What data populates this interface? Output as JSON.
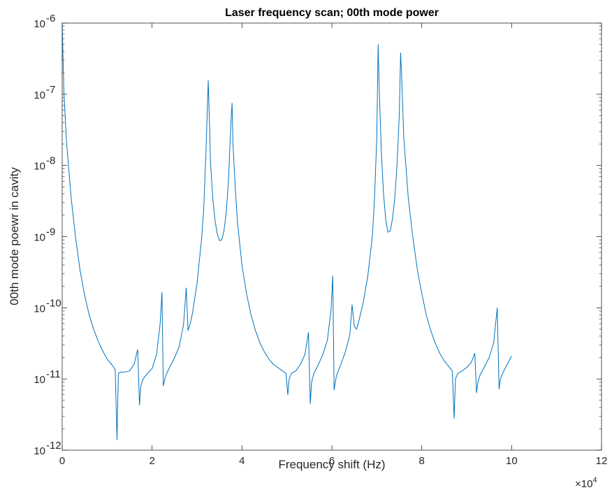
{
  "chart_data": {
    "type": "line",
    "title": "Laser frequency scan; 00th mode power",
    "xlabel": "Frequency shift (Hz)",
    "ylabel": "00th mode poewr in cavity",
    "x_exponent_label": "×10",
    "x_exponent": "4",
    "x_scale_factor": 10000,
    "xlim": [
      0,
      120000
    ],
    "ylim": [
      1e-12,
      1e-06
    ],
    "yscale": "log",
    "grid": false,
    "x_ticks": [
      0,
      20000,
      40000,
      60000,
      80000,
      100000,
      120000
    ],
    "x_tick_labels": [
      "0",
      "2",
      "4",
      "6",
      "8",
      "10",
      "12"
    ],
    "y_ticks": [
      1e-12,
      1e-11,
      1e-10,
      1e-09,
      1e-08,
      1e-07,
      1e-06
    ],
    "y_tick_labels": [
      {
        "base": "10",
        "exp": "-12"
      },
      {
        "base": "10",
        "exp": "-11"
      },
      {
        "base": "10",
        "exp": "-10"
      },
      {
        "base": "10",
        "exp": "-9"
      },
      {
        "base": "10",
        "exp": "-8"
      },
      {
        "base": "10",
        "exp": "-7"
      },
      {
        "base": "10",
        "exp": "-6"
      }
    ],
    "series": [
      {
        "color": "#0072bd",
        "x": [
          0,
          200,
          400,
          1000,
          2000,
          3000,
          4000,
          5000,
          6000,
          7000,
          8000,
          9000,
          10000,
          11000,
          11800,
          12200,
          12500,
          13000,
          14000,
          15000,
          16000,
          16800,
          17200,
          17500,
          18000,
          19000,
          20000,
          21000,
          21800,
          22200,
          22500,
          23000,
          24000,
          25000,
          26000,
          27000,
          27600,
          28000,
          28500,
          29000,
          30000,
          31000,
          31500,
          32000,
          32500,
          32800,
          33000,
          33500,
          34000,
          34500,
          35000,
          35500,
          36000,
          36500,
          37000,
          37500,
          37800,
          38000,
          38500,
          39000,
          40000,
          41000,
          42000,
          43000,
          44000,
          45000,
          46000,
          47000,
          48000,
          49000,
          49800,
          50200,
          50500,
          51000,
          52000,
          53000,
          54000,
          54800,
          55200,
          55500,
          56000,
          57000,
          58000,
          59000,
          59800,
          60200,
          60500,
          61000,
          62000,
          63000,
          64000,
          64500,
          65000,
          65500,
          66000,
          67000,
          68000,
          69000,
          69500,
          70000,
          70300,
          70500,
          71000,
          71500,
          72000,
          72500,
          73000,
          73500,
          74000,
          74500,
          75000,
          75300,
          75500,
          76000,
          77000,
          78000,
          79000,
          80000,
          81000,
          82000,
          83000,
          84000,
          85000,
          86000,
          86800,
          87200,
          87500,
          88000,
          89000,
          90000,
          91000,
          91800,
          92200,
          92500,
          93000,
          94000,
          95000,
          96000,
          96800,
          97200,
          97500,
          98000,
          99000,
          100000
        ],
        "y": [
          1e-06,
          3e-07,
          1e-07,
          2e-08,
          3.5e-09,
          9.5e-10,
          3.3e-10,
          1.5e-10,
          8e-11,
          5e-11,
          3.4e-11,
          2.5e-11,
          1.9e-11,
          1.6e-11,
          1.35e-11,
          1.4e-12,
          1.2e-11,
          1.25e-11,
          1.25e-11,
          1.3e-11,
          1.6e-11,
          2.6e-11,
          4.3e-12,
          8e-12,
          1e-11,
          1.2e-11,
          1.4e-11,
          2.2e-11,
          6e-11,
          1.65e-10,
          8e-12,
          1.1e-11,
          1.5e-11,
          2e-11,
          2.8e-11,
          5.8e-11,
          1.9e-10,
          4.8e-11,
          6e-11,
          8.5e-11,
          2.2e-10,
          9e-10,
          2.5e-09,
          1.6e-08,
          1.55e-07,
          3.5e-08,
          1.1e-08,
          3.5e-09,
          1.7e-09,
          1.1e-09,
          8.8e-10,
          9e-10,
          1.2e-09,
          2.2e-09,
          6e-09,
          3.5e-08,
          7.5e-08,
          2e-08,
          5e-09,
          1.6e-09,
          4e-10,
          1.6e-10,
          8e-11,
          4.8e-11,
          3.2e-11,
          2.4e-11,
          1.9e-11,
          1.6e-11,
          1.45e-11,
          1.3e-11,
          1.2e-11,
          6e-12,
          1e-11,
          1.2e-11,
          1.3e-11,
          1.6e-11,
          2.2e-11,
          4.5e-11,
          4.5e-12,
          9e-12,
          1.2e-11,
          1.6e-11,
          2.2e-11,
          3.5e-11,
          9e-11,
          2.8e-10,
          7e-12,
          1.1e-11,
          1.6e-11,
          2.4e-11,
          4.2e-11,
          1.1e-10,
          5.5e-11,
          5e-11,
          6.5e-11,
          1.2e-10,
          2.8e-10,
          1e-09,
          3.5e-09,
          2.5e-08,
          5e-07,
          1.5e-07,
          1.6e-08,
          4e-09,
          1.7e-09,
          1.15e-09,
          1.2e-09,
          1.8e-09,
          3.5e-09,
          1e-08,
          5e-08,
          3.8e-07,
          2e-07,
          2.5e-08,
          3.5e-09,
          1e-09,
          3.5e-10,
          1.6e-10,
          8e-11,
          4.8e-11,
          3.2e-11,
          2.3e-11,
          1.8e-11,
          1.5e-11,
          1.3e-11,
          2.8e-12,
          1e-11,
          1.2e-11,
          1.3e-11,
          1.45e-11,
          1.7e-11,
          2.3e-11,
          6.4e-12,
          9e-12,
          1.15e-11,
          1.5e-11,
          2e-11,
          3.2e-11,
          1e-10,
          7.2e-12,
          1e-11,
          1.2e-11,
          1.6e-11,
          2.1e-11
        ]
      }
    ]
  }
}
